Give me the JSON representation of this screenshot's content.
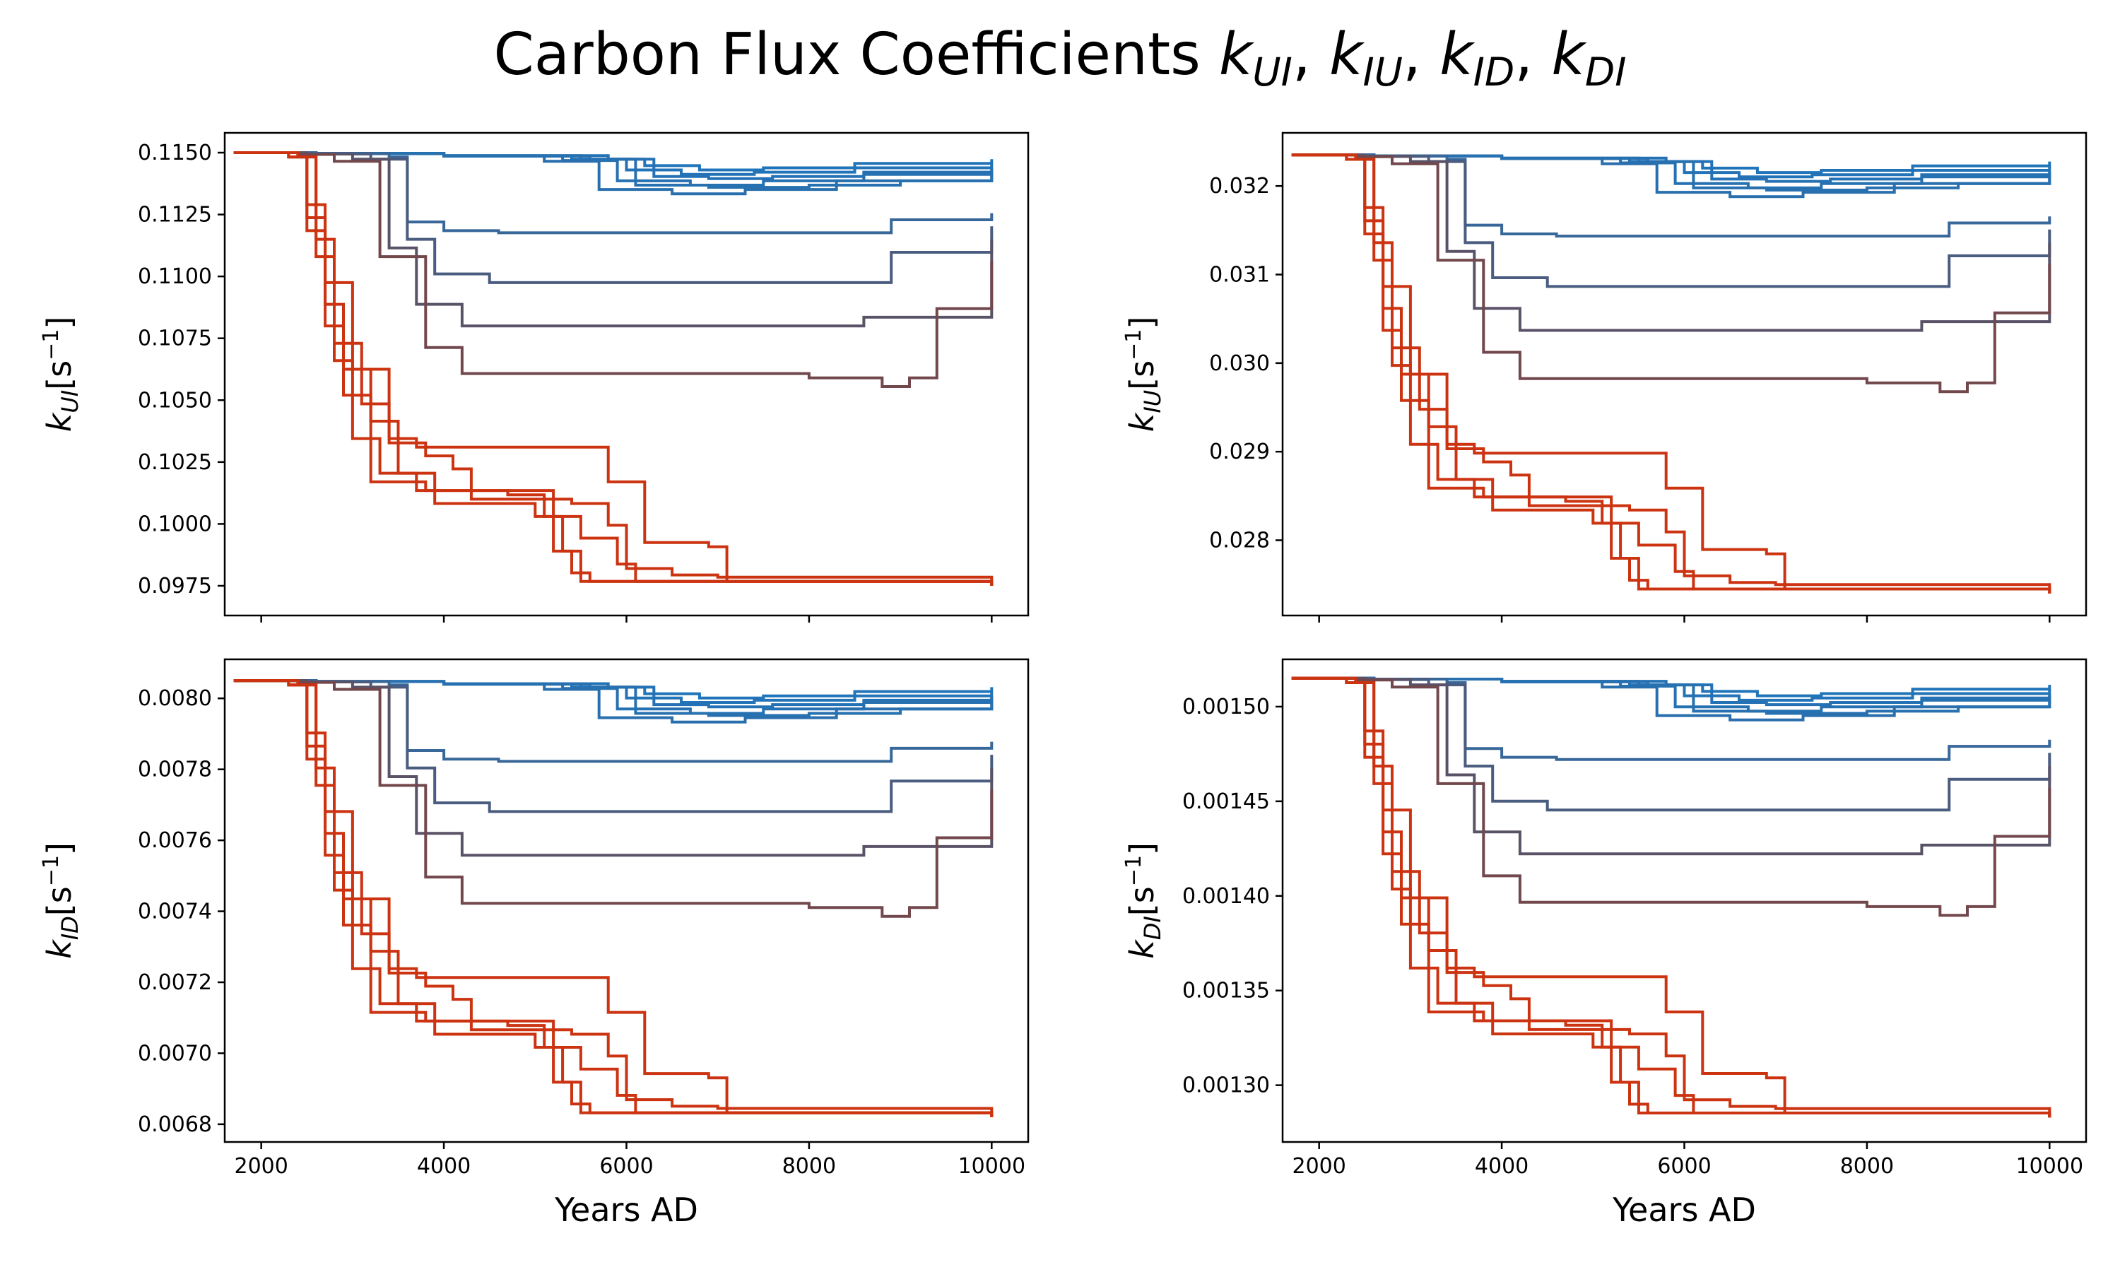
{
  "chart_data": {
    "type": "line",
    "title": {
      "text": "Carbon Flux Coefficients ",
      "math": [
        {
          "k": "k",
          "sub": "UI",
          "sep": ", "
        },
        {
          "k": "k",
          "sub": "IU",
          "sep": ", "
        },
        {
          "k": "k",
          "sub": "ID",
          "sep": ", "
        },
        {
          "k": "k",
          "sub": "DI",
          "sep": ""
        }
      ]
    },
    "x": {
      "label": "Years AD",
      "range": [
        1600,
        10400
      ],
      "ticks": [
        "2000",
        "4000",
        "6000",
        "8000",
        "10000"
      ]
    },
    "colors": {
      "low_change": "#1a78c2",
      "mid_change": "#6a4a52",
      "high_change": "#cc3311",
      "axes": "#000000"
    },
    "series_count": 15,
    "panels": [
      {
        "key": "kUI",
        "ylabel": {
          "k": "k",
          "sub": "UI",
          "unit_base": "[s",
          "unit_exp": "−1",
          "unit_close": "]"
        },
        "y_start": 0.115,
        "y_min": 0.0975,
        "ylim": [
          0.0963,
          0.1158
        ],
        "yticks": [
          "0.0975",
          "0.1000",
          "0.1025",
          "0.1050",
          "0.1075",
          "0.1100",
          "0.1125",
          "0.1150"
        ],
        "show_xticklabels": false
      },
      {
        "key": "kIU",
        "ylabel": {
          "k": "k",
          "sub": "IU",
          "unit_base": "[s",
          "unit_exp": "−1",
          "unit_close": "]"
        },
        "y_start": 0.03235,
        "y_min": 0.0274,
        "ylim": [
          0.02715,
          0.0326
        ],
        "yticks": [
          "0.028",
          "0.029",
          "0.030",
          "0.031",
          "0.032"
        ],
        "show_xticklabels": false
      },
      {
        "key": "kID",
        "ylabel": {
          "k": "k",
          "sub": "ID",
          "unit_base": "[s",
          "unit_exp": "−1",
          "unit_close": "]"
        },
        "y_start": 0.00805,
        "y_min": 0.00682,
        "ylim": [
          0.00675,
          0.00811
        ],
        "yticks": [
          "0.0068",
          "0.0070",
          "0.0072",
          "0.0074",
          "0.0076",
          "0.0078",
          "0.0080"
        ],
        "show_xticklabels": true
      },
      {
        "key": "kDI",
        "ylabel": {
          "k": "k",
          "sub": "DI",
          "unit_base": "[s",
          "unit_exp": "−1",
          "unit_close": "]"
        },
        "y_start": 0.001515,
        "y_min": 0.001283,
        "ylim": [
          0.00127,
          0.001525
        ],
        "yticks": [
          "0.00130",
          "0.00135",
          "0.00140",
          "0.00145",
          "0.00150"
        ],
        "show_xticklabels": true
      }
    ],
    "series": [
      {
        "f": [
          [
            1700,
            1.0
          ],
          [
            2600,
            0.998
          ],
          [
            4000,
            0.993
          ],
          [
            5500,
            0.985
          ],
          [
            6200,
            0.97
          ],
          [
            6800,
            0.96
          ],
          [
            7500,
            0.965
          ],
          [
            8500,
            0.975
          ],
          [
            10000,
            0.985
          ]
        ]
      },
      {
        "f": [
          [
            1700,
            1.0
          ],
          [
            2600,
            0.998
          ],
          [
            4000,
            0.992
          ],
          [
            5400,
            0.985
          ],
          [
            6000,
            0.96
          ],
          [
            6600,
            0.95
          ],
          [
            7400,
            0.955
          ],
          [
            8500,
            0.965
          ],
          [
            10000,
            0.975
          ]
        ]
      },
      {
        "f": [
          [
            1700,
            1.0
          ],
          [
            2600,
            0.998
          ],
          [
            4000,
            0.993
          ],
          [
            5800,
            0.985
          ],
          [
            6300,
            0.945
          ],
          [
            6900,
            0.94
          ],
          [
            7600,
            0.945
          ],
          [
            8600,
            0.955
          ],
          [
            10000,
            0.965
          ]
        ]
      },
      {
        "f": [
          [
            1700,
            1.0
          ],
          [
            2600,
            0.998
          ],
          [
            4000,
            0.992
          ],
          [
            5300,
            0.982
          ],
          [
            5900,
            0.935
          ],
          [
            6700,
            0.925
          ],
          [
            7500,
            0.935
          ],
          [
            8600,
            0.95
          ],
          [
            10000,
            0.96
          ]
        ]
      },
      {
        "f": [
          [
            1700,
            1.0
          ],
          [
            2600,
            0.998
          ],
          [
            4000,
            0.992
          ],
          [
            5100,
            0.98
          ],
          [
            5700,
            0.915
          ],
          [
            6500,
            0.905
          ],
          [
            7300,
            0.915
          ],
          [
            8300,
            0.935
          ],
          [
            10000,
            0.955
          ]
        ]
      },
      {
        "f": [
          [
            1700,
            1.0
          ],
          [
            2600,
            0.998
          ],
          [
            4000,
            0.992
          ],
          [
            5600,
            0.985
          ],
          [
            6100,
            0.925
          ],
          [
            6900,
            0.92
          ],
          [
            8000,
            0.925
          ],
          [
            9000,
            0.935
          ],
          [
            10000,
            0.96
          ]
        ]
      },
      {
        "f": [
          [
            1700,
            1.0
          ],
          [
            2600,
            0.998
          ],
          [
            3400,
            0.99
          ],
          [
            3600,
            0.84
          ],
          [
            4000,
            0.82
          ],
          [
            4600,
            0.815
          ],
          [
            8200,
            0.815
          ],
          [
            8900,
            0.845
          ],
          [
            10000,
            0.86
          ]
        ]
      },
      {
        "f": [
          [
            1700,
            1.0
          ],
          [
            2500,
            0.997
          ],
          [
            3200,
            0.985
          ],
          [
            3600,
            0.8
          ],
          [
            3900,
            0.72
          ],
          [
            4500,
            0.7
          ],
          [
            8000,
            0.7
          ],
          [
            8900,
            0.77
          ],
          [
            10000,
            0.83
          ]
        ]
      },
      {
        "f": [
          [
            1700,
            1.0
          ],
          [
            2500,
            0.997
          ],
          [
            3000,
            0.985
          ],
          [
            3400,
            0.78
          ],
          [
            3700,
            0.65
          ],
          [
            4200,
            0.6
          ],
          [
            7200,
            0.6
          ],
          [
            8600,
            0.62
          ],
          [
            10000,
            0.8
          ]
        ]
      },
      {
        "f": [
          [
            1700,
            1.0
          ],
          [
            2400,
            0.996
          ],
          [
            2800,
            0.98
          ],
          [
            3300,
            0.76
          ],
          [
            3800,
            0.55
          ],
          [
            4200,
            0.49
          ],
          [
            8000,
            0.48
          ],
          [
            8800,
            0.46
          ],
          [
            9100,
            0.48
          ],
          [
            9400,
            0.64
          ],
          [
            10000,
            0.75
          ]
        ]
      },
      {
        "f": [
          [
            1700,
            1.0
          ],
          [
            2300,
            0.99
          ],
          [
            2500,
            0.88
          ],
          [
            2700,
            0.7
          ],
          [
            3000,
            0.5
          ],
          [
            3400,
            0.33
          ],
          [
            3800,
            0.3
          ],
          [
            4100,
            0.27
          ],
          [
            4300,
            0.2
          ],
          [
            5000,
            0.2
          ],
          [
            5400,
            0.19
          ],
          [
            5800,
            0.14
          ],
          [
            6000,
            0.04
          ],
          [
            6500,
            0.025
          ],
          [
            7000,
            0.02
          ],
          [
            10000,
            0.0
          ]
        ]
      },
      {
        "f": [
          [
            1700,
            1.0
          ],
          [
            2400,
            0.99
          ],
          [
            2600,
            0.8
          ],
          [
            2800,
            0.56
          ],
          [
            3100,
            0.42
          ],
          [
            3400,
            0.34
          ],
          [
            3700,
            0.32
          ],
          [
            5400,
            0.32
          ],
          [
            5800,
            0.24
          ],
          [
            6200,
            0.1
          ],
          [
            6900,
            0.09
          ],
          [
            7100,
            0.01
          ],
          [
            10000,
            0.0
          ]
        ]
      },
      {
        "f": [
          [
            1700,
            1.0
          ],
          [
            2300,
            0.99
          ],
          [
            2500,
            0.85
          ],
          [
            2700,
            0.65
          ],
          [
            2900,
            0.5
          ],
          [
            3200,
            0.38
          ],
          [
            3500,
            0.26
          ],
          [
            3900,
            0.19
          ],
          [
            4600,
            0.19
          ],
          [
            5000,
            0.16
          ],
          [
            5300,
            0.08
          ],
          [
            5500,
            0.01
          ],
          [
            10000,
            0.0
          ]
        ]
      },
      {
        "f": [
          [
            1700,
            1.0
          ],
          [
            2300,
            0.99
          ],
          [
            2500,
            0.82
          ],
          [
            2700,
            0.6
          ],
          [
            2900,
            0.44
          ],
          [
            3200,
            0.24
          ],
          [
            3800,
            0.22
          ],
          [
            4700,
            0.21
          ],
          [
            5100,
            0.16
          ],
          [
            5500,
            0.11
          ],
          [
            5900,
            0.05
          ],
          [
            6100,
            0.01
          ],
          [
            10000,
            0.0
          ]
        ]
      },
      {
        "f": [
          [
            1700,
            1.0
          ],
          [
            2300,
            0.99
          ],
          [
            2600,
            0.76
          ],
          [
            2800,
            0.52
          ],
          [
            3000,
            0.34
          ],
          [
            3300,
            0.26
          ],
          [
            3700,
            0.22
          ],
          [
            5000,
            0.22
          ],
          [
            5200,
            0.08
          ],
          [
            5400,
            0.03
          ],
          [
            5600,
            0.01
          ],
          [
            10000,
            0.0
          ]
        ]
      }
    ]
  }
}
